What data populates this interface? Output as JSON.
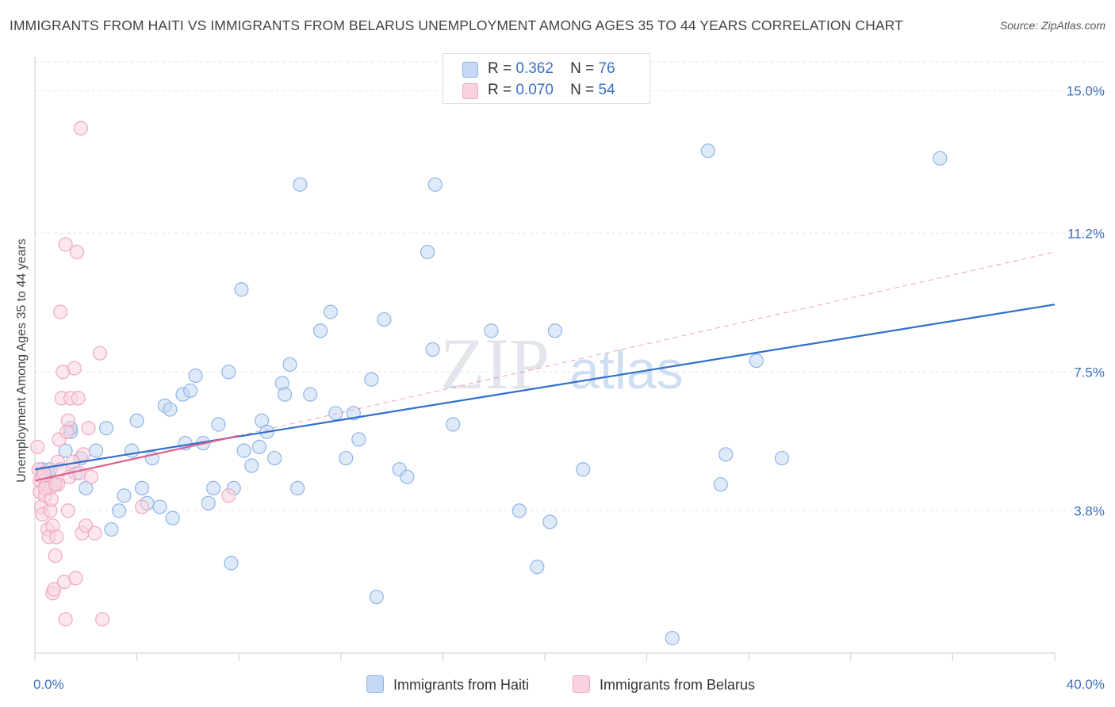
{
  "title": "IMMIGRANTS FROM HAITI VS IMMIGRANTS FROM BELARUS UNEMPLOYMENT AMONG AGES 35 TO 44 YEARS CORRELATION CHART",
  "source": "Source: ZipAtlas.com",
  "watermark": {
    "zip": "ZIP",
    "atlas": "atlas"
  },
  "legend": {
    "series1": {
      "r_label": "R =",
      "r_value": "0.362",
      "n_label": "N =",
      "n_value": "76"
    },
    "series2": {
      "r_label": "R =",
      "r_value": "0.070",
      "n_label": "N =",
      "n_value": "54"
    }
  },
  "chart_data": {
    "type": "scatter",
    "ylabel": "Unemployment Among Ages 35 to 44 years",
    "xlim": [
      0,
      40
    ],
    "ylim": [
      0,
      15.9
    ],
    "x_tick_labels": [
      {
        "value": 0,
        "label": "0.0%"
      },
      {
        "value": 40,
        "label": "40.0%"
      }
    ],
    "y_tick_labels": [
      {
        "value": 3.8,
        "label": "3.8%"
      },
      {
        "value": 7.5,
        "label": "7.5%"
      },
      {
        "value": 11.2,
        "label": "11.2%"
      },
      {
        "value": 15.0,
        "label": "15.0%"
      }
    ],
    "series": [
      {
        "name": "Immigrants from Haiti",
        "color": "#8fb4e8",
        "fill": "#c5d8f3",
        "trend_color": "#2f6fcc",
        "trend": {
          "x": [
            0,
            40
          ],
          "y": [
            4.9,
            9.3
          ]
        },
        "points": [
          [
            0.3,
            4.9
          ],
          [
            0.4,
            4.8
          ],
          [
            0.6,
            4.9
          ],
          [
            0.7,
            4.5
          ],
          [
            1.2,
            5.4
          ],
          [
            1.4,
            5.9
          ],
          [
            1.6,
            4.8
          ],
          [
            1.8,
            5.2
          ],
          [
            1.4,
            6.0
          ],
          [
            2.0,
            4.4
          ],
          [
            2.4,
            5.4
          ],
          [
            2.8,
            6.0
          ],
          [
            3.0,
            3.3
          ],
          [
            3.3,
            3.8
          ],
          [
            3.5,
            4.2
          ],
          [
            3.8,
            5.4
          ],
          [
            4.0,
            6.2
          ],
          [
            4.2,
            4.4
          ],
          [
            4.4,
            4.0
          ],
          [
            4.6,
            5.2
          ],
          [
            4.9,
            3.9
          ],
          [
            5.1,
            6.6
          ],
          [
            5.3,
            6.5
          ],
          [
            5.4,
            3.6
          ],
          [
            5.8,
            6.9
          ],
          [
            5.9,
            5.6
          ],
          [
            6.1,
            7.0
          ],
          [
            6.3,
            7.4
          ],
          [
            6.6,
            5.6
          ],
          [
            6.8,
            4.0
          ],
          [
            7.0,
            4.4
          ],
          [
            7.2,
            6.1
          ],
          [
            7.6,
            7.5
          ],
          [
            7.7,
            2.4
          ],
          [
            7.8,
            4.4
          ],
          [
            8.1,
            9.7
          ],
          [
            8.2,
            5.4
          ],
          [
            8.5,
            5.0
          ],
          [
            8.8,
            5.5
          ],
          [
            8.9,
            6.2
          ],
          [
            9.1,
            5.9
          ],
          [
            9.4,
            5.2
          ],
          [
            9.7,
            7.2
          ],
          [
            9.8,
            6.9
          ],
          [
            10.0,
            7.7
          ],
          [
            10.3,
            4.4
          ],
          [
            10.4,
            12.5
          ],
          [
            10.8,
            6.9
          ],
          [
            11.2,
            8.6
          ],
          [
            11.6,
            9.1
          ],
          [
            11.8,
            6.4
          ],
          [
            12.2,
            5.2
          ],
          [
            12.5,
            6.4
          ],
          [
            12.7,
            5.7
          ],
          [
            13.2,
            7.3
          ],
          [
            13.4,
            1.5
          ],
          [
            13.7,
            8.9
          ],
          [
            14.3,
            4.9
          ],
          [
            14.6,
            4.7
          ],
          [
            15.4,
            10.7
          ],
          [
            15.6,
            8.1
          ],
          [
            15.7,
            12.5
          ],
          [
            16.4,
            6.1
          ],
          [
            17.9,
            8.6
          ],
          [
            19.0,
            3.8
          ],
          [
            19.7,
            2.3
          ],
          [
            20.2,
            3.5
          ],
          [
            20.4,
            8.6
          ],
          [
            21.5,
            4.9
          ],
          [
            26.4,
            13.4
          ],
          [
            26.9,
            4.5
          ],
          [
            27.1,
            5.3
          ],
          [
            28.3,
            7.8
          ],
          [
            29.3,
            5.2
          ],
          [
            35.5,
            13.2
          ],
          [
            25.0,
            0.4
          ]
        ]
      },
      {
        "name": "Immigrants from Belarus",
        "color": "#f0a8c0",
        "fill": "#f8d3df",
        "trend_color": "#e06090",
        "trend": {
          "x": [
            0,
            8.0
          ],
          "y": [
            4.6,
            5.8
          ]
        },
        "points": [
          [
            0.1,
            5.5
          ],
          [
            0.15,
            4.9
          ],
          [
            0.2,
            4.6
          ],
          [
            0.2,
            4.3
          ],
          [
            0.25,
            3.9
          ],
          [
            0.3,
            3.7
          ],
          [
            0.3,
            4.7
          ],
          [
            0.35,
            4.8
          ],
          [
            0.4,
            4.2
          ],
          [
            0.45,
            4.5
          ],
          [
            0.5,
            3.3
          ],
          [
            0.55,
            3.1
          ],
          [
            0.6,
            4.4
          ],
          [
            0.6,
            3.8
          ],
          [
            0.7,
            3.4
          ],
          [
            0.7,
            1.6
          ],
          [
            0.75,
            1.7
          ],
          [
            0.8,
            2.6
          ],
          [
            0.85,
            3.1
          ],
          [
            0.9,
            4.5
          ],
          [
            0.9,
            5.1
          ],
          [
            0.95,
            5.7
          ],
          [
            1.0,
            9.1
          ],
          [
            1.05,
            6.8
          ],
          [
            1.1,
            7.5
          ],
          [
            1.15,
            1.9
          ],
          [
            1.2,
            10.9
          ],
          [
            1.2,
            0.9
          ],
          [
            1.3,
            6.2
          ],
          [
            1.35,
            4.7
          ],
          [
            1.4,
            6.8
          ],
          [
            1.5,
            5.1
          ],
          [
            1.55,
            7.6
          ],
          [
            1.6,
            2.0
          ],
          [
            1.65,
            10.7
          ],
          [
            1.7,
            6.8
          ],
          [
            1.75,
            4.8
          ],
          [
            1.8,
            14.0
          ],
          [
            1.85,
            3.2
          ],
          [
            1.9,
            5.3
          ],
          [
            2.0,
            3.4
          ],
          [
            2.1,
            6.0
          ],
          [
            2.2,
            4.7
          ],
          [
            2.35,
            3.2
          ],
          [
            2.55,
            8.0
          ],
          [
            2.65,
            0.9
          ],
          [
            4.2,
            3.9
          ],
          [
            7.6,
            4.2
          ],
          [
            1.3,
            3.8
          ],
          [
            0.65,
            4.1
          ],
          [
            0.4,
            4.4
          ],
          [
            1.0,
            4.9
          ],
          [
            1.25,
            5.9
          ],
          [
            0.8,
            4.5
          ]
        ]
      }
    ]
  }
}
